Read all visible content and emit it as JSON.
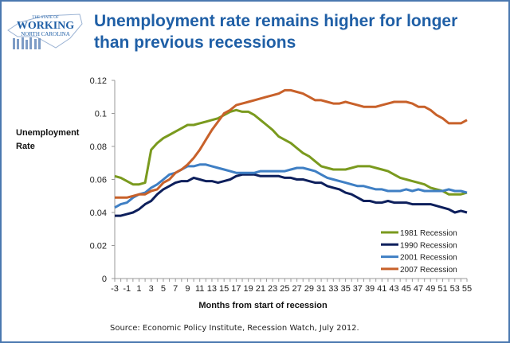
{
  "logo": {
    "text_top": "THE STATE OF",
    "text_main": "WORKING",
    "text_bottom": "NORTH CAROLINA"
  },
  "colors": {
    "title": "#1f5fa6",
    "frame": "#4a78b0",
    "axis": "#999999"
  },
  "chart_data": {
    "type": "line",
    "title": "Unemployment rate remains higher for longer than previous recessions",
    "title_lines": [
      "Unemployment rate remains higher for longer",
      "than previous recessions"
    ],
    "xlabel": "Months from start of recession",
    "ylabel_lines": [
      "Unemployment",
      "Rate"
    ],
    "xlim": [
      -3,
      55
    ],
    "ylim": [
      0,
      0.12
    ],
    "yticks": [
      "0",
      "0.02",
      "0.04",
      "0.06",
      "0.08",
      "0.1",
      "0.12"
    ],
    "xticks": [
      "-3",
      "-1",
      "1",
      "3",
      "5",
      "7",
      "9",
      "11",
      "13",
      "15",
      "17",
      "19",
      "21",
      "23",
      "25",
      "27",
      "29",
      "31",
      "33",
      "35",
      "37",
      "39",
      "41",
      "43",
      "45",
      "47",
      "49",
      "51",
      "53",
      "55"
    ],
    "grid": false,
    "legend_position": "bottom-right",
    "source": "Source:  Economic Policy Institute, Recession Watch, July 2012.",
    "x_start": -3,
    "series": [
      {
        "name": "1981 Recession",
        "color": "#7a9a1e",
        "values": [
          0.062,
          0.061,
          0.059,
          0.057,
          0.057,
          0.058,
          0.078,
          0.082,
          0.085,
          0.087,
          0.089,
          0.091,
          0.093,
          0.093,
          0.094,
          0.095,
          0.096,
          0.097,
          0.099,
          0.101,
          0.102,
          0.101,
          0.101,
          0.099,
          0.096,
          0.093,
          0.09,
          0.086,
          0.084,
          0.082,
          0.079,
          0.076,
          0.074,
          0.071,
          0.068,
          0.067,
          0.066,
          0.066,
          0.066,
          0.067,
          0.068,
          0.068,
          0.068,
          0.067,
          0.066,
          0.065,
          0.063,
          0.061,
          0.06,
          0.059,
          0.058,
          0.057,
          0.055,
          0.054,
          0.053,
          0.051,
          0.051,
          0.051,
          0.052
        ]
      },
      {
        "name": "1990 Recession",
        "color": "#0d1f5c",
        "values": [
          0.038,
          0.038,
          0.039,
          0.04,
          0.042,
          0.045,
          0.047,
          0.051,
          0.054,
          0.056,
          0.058,
          0.059,
          0.059,
          0.061,
          0.06,
          0.059,
          0.059,
          0.058,
          0.059,
          0.06,
          0.062,
          0.063,
          0.063,
          0.063,
          0.062,
          0.062,
          0.062,
          0.062,
          0.061,
          0.061,
          0.06,
          0.06,
          0.059,
          0.058,
          0.058,
          0.056,
          0.055,
          0.054,
          0.052,
          0.051,
          0.049,
          0.047,
          0.047,
          0.046,
          0.046,
          0.047,
          0.046,
          0.046,
          0.046,
          0.045,
          0.045,
          0.045,
          0.045,
          0.044,
          0.043,
          0.042,
          0.04,
          0.041,
          0.04
        ]
      },
      {
        "name": "2001 Recession",
        "color": "#3f7fc4",
        "values": [
          0.043,
          0.045,
          0.046,
          0.049,
          0.051,
          0.052,
          0.055,
          0.057,
          0.06,
          0.063,
          0.064,
          0.066,
          0.068,
          0.068,
          0.069,
          0.069,
          0.068,
          0.067,
          0.066,
          0.065,
          0.064,
          0.064,
          0.064,
          0.064,
          0.065,
          0.065,
          0.065,
          0.065,
          0.065,
          0.066,
          0.067,
          0.067,
          0.066,
          0.065,
          0.063,
          0.061,
          0.06,
          0.059,
          0.058,
          0.057,
          0.056,
          0.056,
          0.055,
          0.054,
          0.054,
          0.053,
          0.053,
          0.053,
          0.054,
          0.053,
          0.054,
          0.053,
          0.053,
          0.053,
          0.053,
          0.054,
          0.053,
          0.053,
          0.052
        ]
      },
      {
        "name": "2007 Recession",
        "color": "#c8612a",
        "values": [
          0.049,
          0.049,
          0.049,
          0.05,
          0.051,
          0.051,
          0.053,
          0.054,
          0.058,
          0.06,
          0.064,
          0.066,
          0.069,
          0.073,
          0.078,
          0.084,
          0.09,
          0.095,
          0.1,
          0.102,
          0.105,
          0.106,
          0.107,
          0.108,
          0.109,
          0.11,
          0.111,
          0.112,
          0.114,
          0.114,
          0.113,
          0.112,
          0.11,
          0.108,
          0.108,
          0.107,
          0.106,
          0.106,
          0.107,
          0.106,
          0.105,
          0.104,
          0.104,
          0.104,
          0.105,
          0.106,
          0.107,
          0.107,
          0.107,
          0.106,
          0.104,
          0.104,
          0.102,
          0.099,
          0.097,
          0.094,
          0.094,
          0.094,
          0.096
        ]
      }
    ]
  }
}
